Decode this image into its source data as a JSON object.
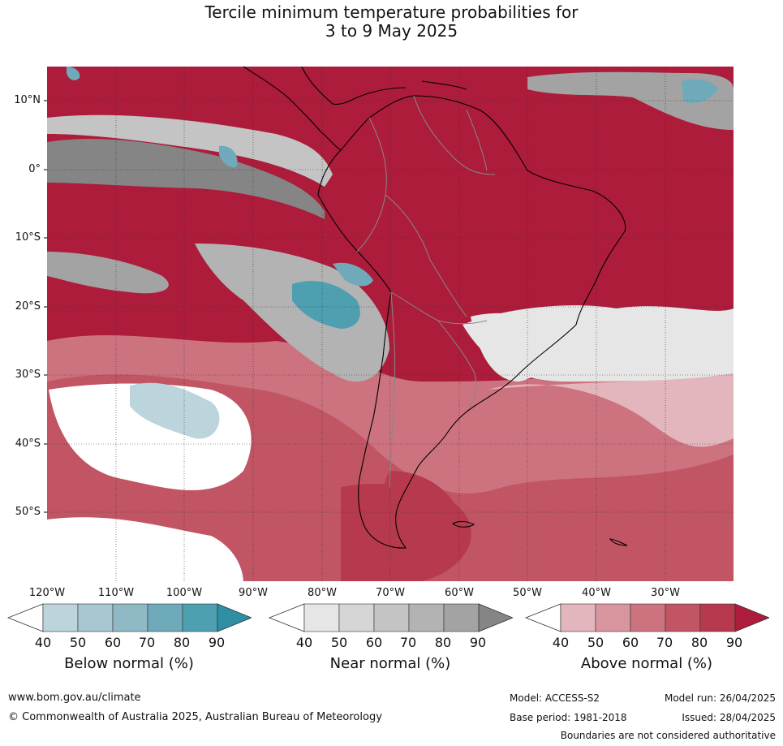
{
  "title": {
    "line1": "Tercile minimum temperature probabilities for",
    "line2": "3 to 9 May 2025"
  },
  "map": {
    "lat_labels": [
      "10°N",
      "0°",
      "10°S",
      "20°S",
      "30°S",
      "40°S",
      "50°S"
    ],
    "lon_labels": [
      "120°W",
      "110°W",
      "100°W",
      "90°W",
      "80°W",
      "70°W",
      "60°W",
      "50°W",
      "40°W",
      "30°W"
    ],
    "colors": {
      "above": [
        "#e2b6bc",
        "#d8959e",
        "#cc737f",
        "#c15563",
        "#b7394d",
        "#ad1c3a"
      ],
      "near": [
        "#e6e6e6",
        "#d6d6d6",
        "#c4c4c4",
        "#b3b3b3",
        "#a3a3a3",
        "#858585"
      ],
      "below": [
        "#bcd5dc",
        "#a7c8d1",
        "#8fb9c5",
        "#6eaab9",
        "#4ea0b0",
        "#2f8fa3"
      ]
    }
  },
  "colorbars": [
    {
      "label": "Below normal (%)",
      "ticks": [
        "40",
        "50",
        "60",
        "70",
        "80",
        "90"
      ],
      "colors": [
        "#bcd5dc",
        "#a7c8d1",
        "#8fb9c5",
        "#6eaab9",
        "#4ea0b0"
      ],
      "end_color": "#2f8fa3"
    },
    {
      "label": "Near normal (%)",
      "ticks": [
        "40",
        "50",
        "60",
        "70",
        "80",
        "90"
      ],
      "colors": [
        "#e6e6e6",
        "#d6d6d6",
        "#c4c4c4",
        "#b3b3b3",
        "#a3a3a3"
      ],
      "end_color": "#858585"
    },
    {
      "label": "Above normal (%)",
      "ticks": [
        "40",
        "50",
        "60",
        "70",
        "80",
        "90"
      ],
      "colors": [
        "#e2b6bc",
        "#d8959e",
        "#cc737f",
        "#c15563",
        "#b7394d"
      ],
      "end_color": "#ad1c3a"
    }
  ],
  "footer": {
    "website": "www.bom.gov.au/climate",
    "copyright": "© Commonwealth of Australia 2025, Australian Bureau of Meteorology",
    "model": "Model: ACCESS-S2",
    "model_run": "Model run: 26/04/2025",
    "base_period": "Base period: 1981-2018",
    "issued": "Issued: 28/04/2025",
    "disclaimer": "Boundaries are not considered authoritative"
  }
}
